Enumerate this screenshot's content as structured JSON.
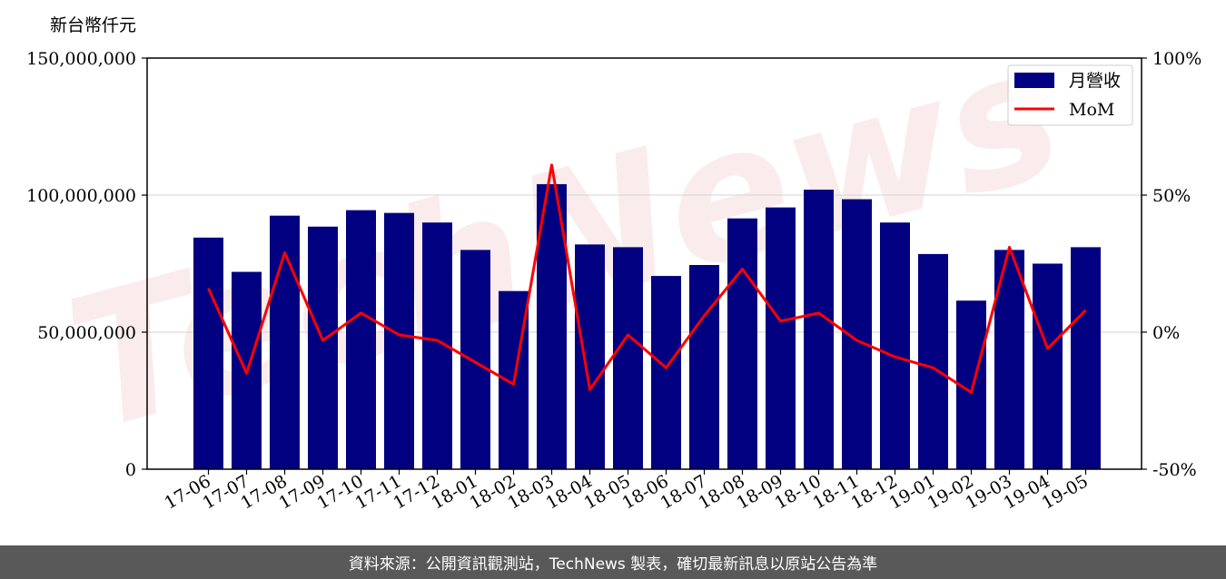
{
  "chart_data": {
    "type": "bar",
    "unit_label": "新台幣仟元",
    "categories": [
      "17-06",
      "17-07",
      "17-08",
      "17-09",
      "17-10",
      "17-11",
      "17-12",
      "18-01",
      "18-02",
      "18-03",
      "18-04",
      "18-05",
      "18-06",
      "18-07",
      "18-08",
      "18-09",
      "18-10",
      "18-11",
      "18-12",
      "19-01",
      "19-02",
      "19-03",
      "19-04",
      "19-05"
    ],
    "series": [
      {
        "name": "月營收",
        "axis": "left",
        "color": "#000080",
        "values": [
          84500000,
          72000000,
          92500000,
          88500000,
          94500000,
          93500000,
          90000000,
          80000000,
          65000000,
          104000000,
          82000000,
          81000000,
          70500000,
          74500000,
          91500000,
          95500000,
          102000000,
          98500000,
          90000000,
          78500000,
          61500000,
          80000000,
          75000000,
          81000000
        ]
      },
      {
        "name": "MoM",
        "axis": "right",
        "color": "#ff0000",
        "values": [
          16,
          -15,
          29,
          -3,
          7,
          -1,
          -3,
          -11,
          -19,
          61,
          -21,
          -1,
          -13,
          6,
          23,
          4,
          7,
          -3,
          -9,
          -13,
          -22,
          31,
          -6,
          8
        ]
      }
    ],
    "ylim": [
      0,
      150000000
    ],
    "yticks": [
      "0",
      "50,000,000",
      "100,000,000",
      "150,000,000"
    ],
    "y2lim": [
      -50,
      100
    ],
    "y2ticks": [
      "-50%",
      "0%",
      "50%",
      "100%"
    ],
    "grid": "horizontal",
    "legend_position": "top-right",
    "watermark": "TechNews"
  },
  "footer": {
    "text": "資料來源：公開資訊觀測站，TechNews 製表，確切最新訊息以原站公告為準"
  }
}
